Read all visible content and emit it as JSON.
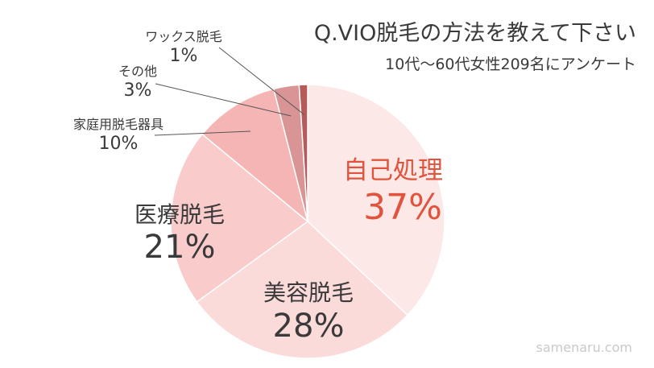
{
  "chart_data": {
    "type": "pie",
    "title": "Q.VIO脱毛の方法を教えて下さい",
    "subtitle": "10代〜60代女性209名にアンケート",
    "watermark": "samenaru.com",
    "start": "12 o'clock",
    "direction": "clockwise",
    "slices": [
      {
        "label": "自己処理",
        "value": 37,
        "value_label": "37%",
        "color": "#FDE8E8",
        "label_color": "#E0533C",
        "label_position": "inside"
      },
      {
        "label": "美容脱毛",
        "value": 28,
        "value_label": "28%",
        "color": "#FBDADA",
        "label_color": "#3A3A3A",
        "label_position": "inside"
      },
      {
        "label": "医療脱毛",
        "value": 21,
        "value_label": "21%",
        "color": "#F9CBCB",
        "label_color": "#3A3A3A",
        "label_position": "inside"
      },
      {
        "label": "家庭用脱毛器具",
        "value": 10,
        "value_label": "10%",
        "color": "#F5B5B5",
        "label_color": "#3A3A3A",
        "label_position": "outside"
      },
      {
        "label": "その他",
        "value": 3,
        "value_label": "3%",
        "color": "#D99595",
        "label_color": "#3A3A3A",
        "label_position": "outside"
      },
      {
        "label": "ワックス脱毛",
        "value": 1,
        "value_label": "1%",
        "color": "#B85A5A",
        "label_color": "#3A3A3A",
        "label_position": "outside"
      }
    ]
  }
}
